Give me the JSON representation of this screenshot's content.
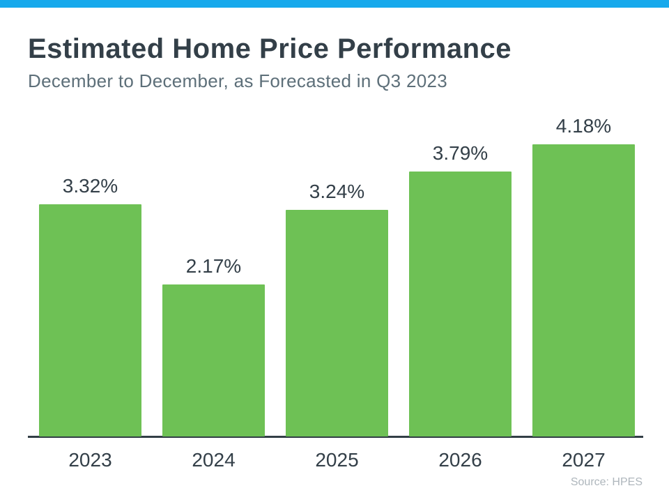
{
  "page": {
    "accent_bar_color": "#17A9EC",
    "background_color": "#FFFFFF"
  },
  "header": {
    "title": "Estimated Home Price Performance",
    "subtitle": "December to December, as Forecasted in Q3 2023"
  },
  "chart_data": {
    "type": "bar",
    "title": "Estimated Home Price Performance",
    "subtitle": "December to December, as Forecasted in Q3 2023",
    "categories": [
      "2023",
      "2024",
      "2025",
      "2026",
      "2027"
    ],
    "values": [
      3.32,
      2.17,
      3.24,
      3.79,
      4.18
    ],
    "value_labels": [
      "3.32%",
      "2.17%",
      "3.24%",
      "3.79%",
      "4.18%"
    ],
    "xlabel": "",
    "ylabel": "",
    "ylim": [
      0,
      4.85
    ],
    "grid": false,
    "legend": false,
    "bar_color": "#6EC155",
    "label_color": "#333F48",
    "axis_color": "#323E46"
  },
  "footer": {
    "source": "Source: HPES"
  }
}
